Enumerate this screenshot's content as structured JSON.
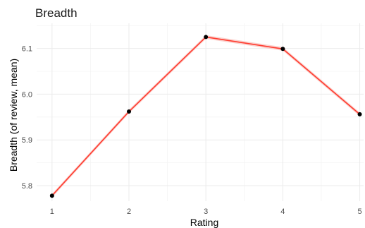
{
  "chart_data": {
    "type": "line",
    "title": "Breadth",
    "xlabel": "Rating",
    "ylabel": "Breadth (of review, mean)",
    "x": [
      1,
      2,
      3,
      4,
      5
    ],
    "series": [
      {
        "values": [
          5.778,
          5.962,
          6.125,
          6.099,
          5.956
        ],
        "ribbon": 0.004
      }
    ],
    "xlim": [
      0.8,
      5.05
    ],
    "ylim": [
      5.766,
      6.155
    ],
    "xticks": [
      1,
      2,
      3,
      4,
      5
    ],
    "xtick_labels": [
      "1",
      "2",
      "3",
      "4",
      "5"
    ],
    "yticks": [
      5.8,
      5.9,
      6.0,
      6.1
    ],
    "ytick_labels": [
      "5.8",
      "5.9",
      "6.0",
      "6.1"
    ],
    "grid": true,
    "legend": "none",
    "colors": {
      "line": "#ff3b2f",
      "ribbon": "#f9c9c4",
      "point": "#000000"
    }
  }
}
